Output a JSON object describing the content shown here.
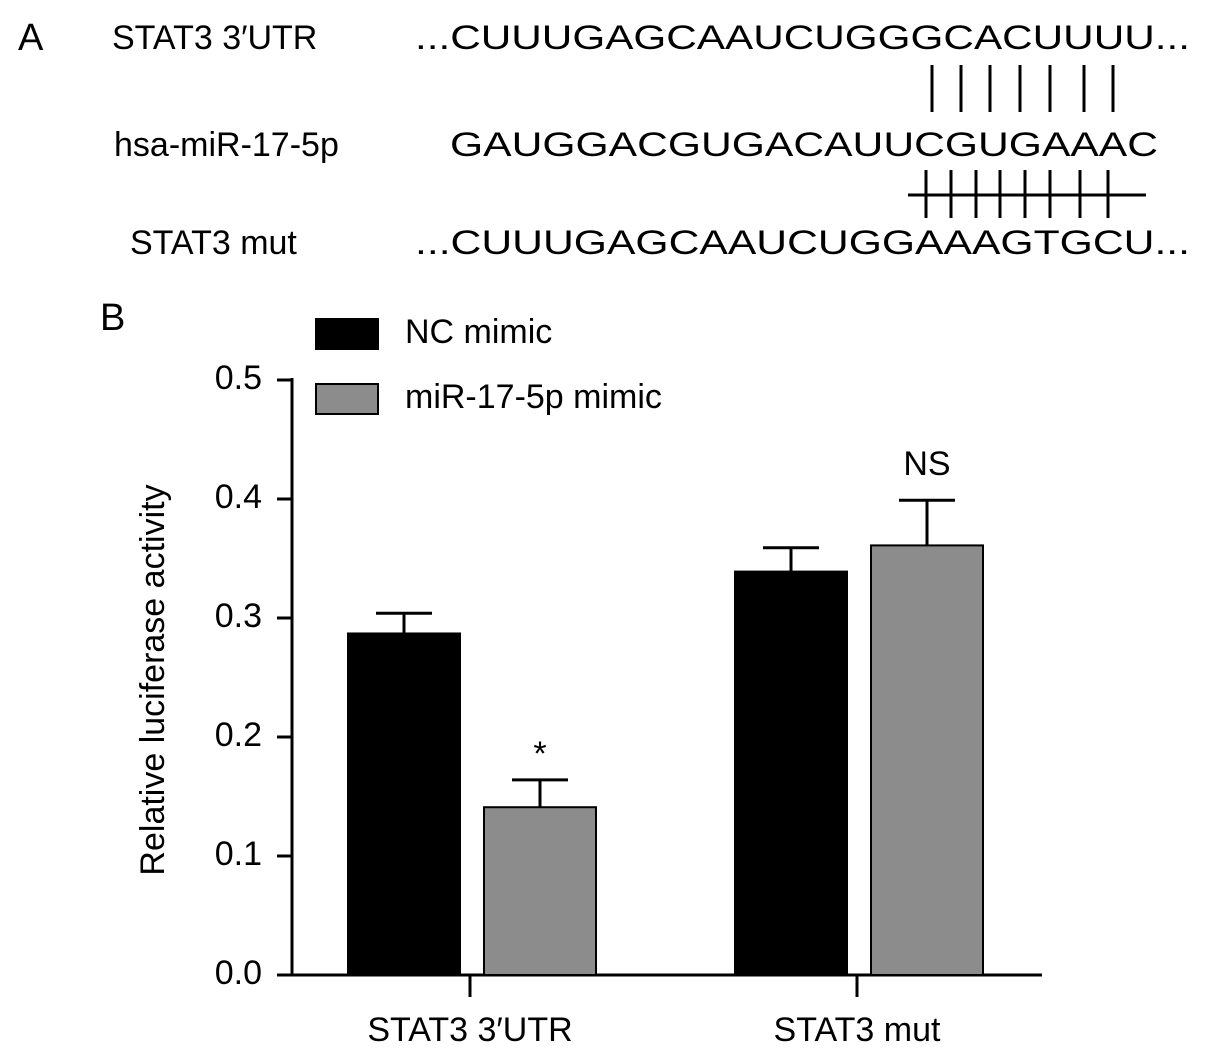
{
  "panel_a": {
    "label": "A",
    "rows": [
      {
        "name": "STAT3 3′UTR",
        "sequence": "...CUUUGAGCAAUCUGGGCACUUUU..."
      },
      {
        "name": "hsa-miR-17-5p",
        "sequence": "GAUGGACGUGACAUUCGUGAAAC"
      },
      {
        "name": "STAT3 mut",
        "sequence": "...CUUUGAGCAAUCUGGAAAGTGCU..."
      }
    ]
  },
  "chart_data": {
    "type": "bar",
    "panel_label": "B",
    "ylabel": "Relative luciferase activity",
    "categories": [
      "STAT3 3′UTR",
      "STAT3 mut"
    ],
    "series": [
      {
        "name": "NC mimic",
        "color": "#000000",
        "values": [
          0.287,
          0.339
        ],
        "errors": [
          0.017,
          0.02
        ]
      },
      {
        "name": "miR-17-5p mimic",
        "color": "#8c8c8c",
        "values": [
          0.141,
          0.361
        ],
        "errors": [
          0.023,
          0.038
        ],
        "significance": [
          "*",
          "NS"
        ]
      }
    ],
    "ylim": [
      0,
      0.5
    ],
    "yticks": [
      {
        "value": 0,
        "label": "0.0"
      },
      0.1,
      0.2,
      0.3,
      0.4,
      0.5
    ],
    "grid": false,
    "legend": "top-left"
  }
}
